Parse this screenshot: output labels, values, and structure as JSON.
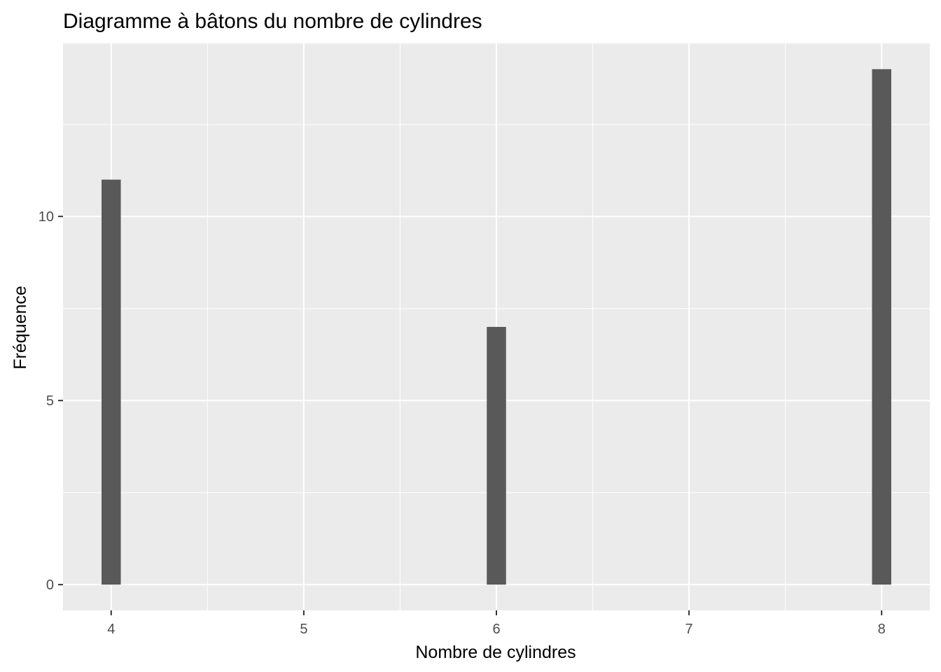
{
  "chart_data": {
    "type": "bar",
    "title": "Diagramme à bâtons du nombre de cylindres",
    "xlabel": "Nombre de cylindres",
    "ylabel": "Fréquence",
    "x": [
      4,
      6,
      8
    ],
    "values": [
      11,
      7,
      14
    ],
    "xlim": [
      3.75,
      8.25
    ],
    "ylim": [
      -0.7,
      14.7
    ],
    "x_ticks": [
      4,
      5,
      6,
      7,
      8
    ],
    "y_ticks": [
      0,
      5,
      10
    ],
    "grid": true,
    "bar_width": 0.1,
    "colors": {
      "panel_background": "#EBEBEB",
      "grid": "#FFFFFF",
      "bar": "#595959",
      "tick_label": "#4D4D4D"
    }
  }
}
